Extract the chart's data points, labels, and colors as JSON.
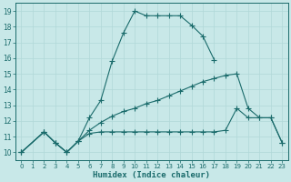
{
  "xlabel": "Humidex (Indice chaleur)",
  "background_color": "#c8e8e8",
  "line_color": "#1a6b6b",
  "grid_color": "#b0d8d8",
  "xlim": [
    -0.5,
    23.5
  ],
  "ylim": [
    9.5,
    19.5
  ],
  "xticks": [
    0,
    1,
    2,
    3,
    4,
    5,
    6,
    7,
    8,
    9,
    10,
    11,
    12,
    13,
    14,
    15,
    16,
    17,
    18,
    19,
    20,
    21,
    22,
    23
  ],
  "yticks": [
    10,
    11,
    12,
    13,
    14,
    15,
    16,
    17,
    18,
    19
  ],
  "series1_x": [
    0,
    2,
    3,
    4,
    5,
    6,
    7,
    8,
    9,
    10,
    11,
    12,
    13,
    14,
    15,
    16,
    17
  ],
  "series1_y": [
    10.0,
    11.3,
    10.6,
    10.0,
    10.7,
    12.2,
    13.3,
    15.8,
    17.6,
    19.0,
    18.7,
    18.7,
    18.7,
    18.7,
    18.1,
    17.4,
    15.9
  ],
  "series2_x": [
    0,
    2,
    3,
    4,
    5,
    6,
    7,
    8,
    9,
    10,
    11,
    12,
    13,
    14,
    15,
    16,
    17,
    18,
    19,
    20,
    21,
    22,
    23
  ],
  "series2_y": [
    10.0,
    11.3,
    10.6,
    10.0,
    10.7,
    11.4,
    11.9,
    12.3,
    12.6,
    12.8,
    13.1,
    13.3,
    13.6,
    13.9,
    14.2,
    14.5,
    14.7,
    14.9,
    15.0,
    12.8,
    12.2,
    12.2,
    10.6
  ],
  "series3_x": [
    0,
    2,
    3,
    4,
    5,
    6,
    7,
    8,
    9,
    10,
    11,
    12,
    13,
    14,
    15,
    16,
    17,
    18,
    19,
    20,
    21,
    22,
    23
  ],
  "series3_y": [
    10.0,
    11.3,
    10.6,
    10.0,
    10.7,
    11.2,
    11.3,
    11.3,
    11.3,
    11.3,
    11.3,
    11.3,
    11.3,
    11.3,
    11.3,
    11.3,
    11.3,
    11.4,
    12.8,
    12.2,
    12.2,
    12.2,
    10.6
  ]
}
